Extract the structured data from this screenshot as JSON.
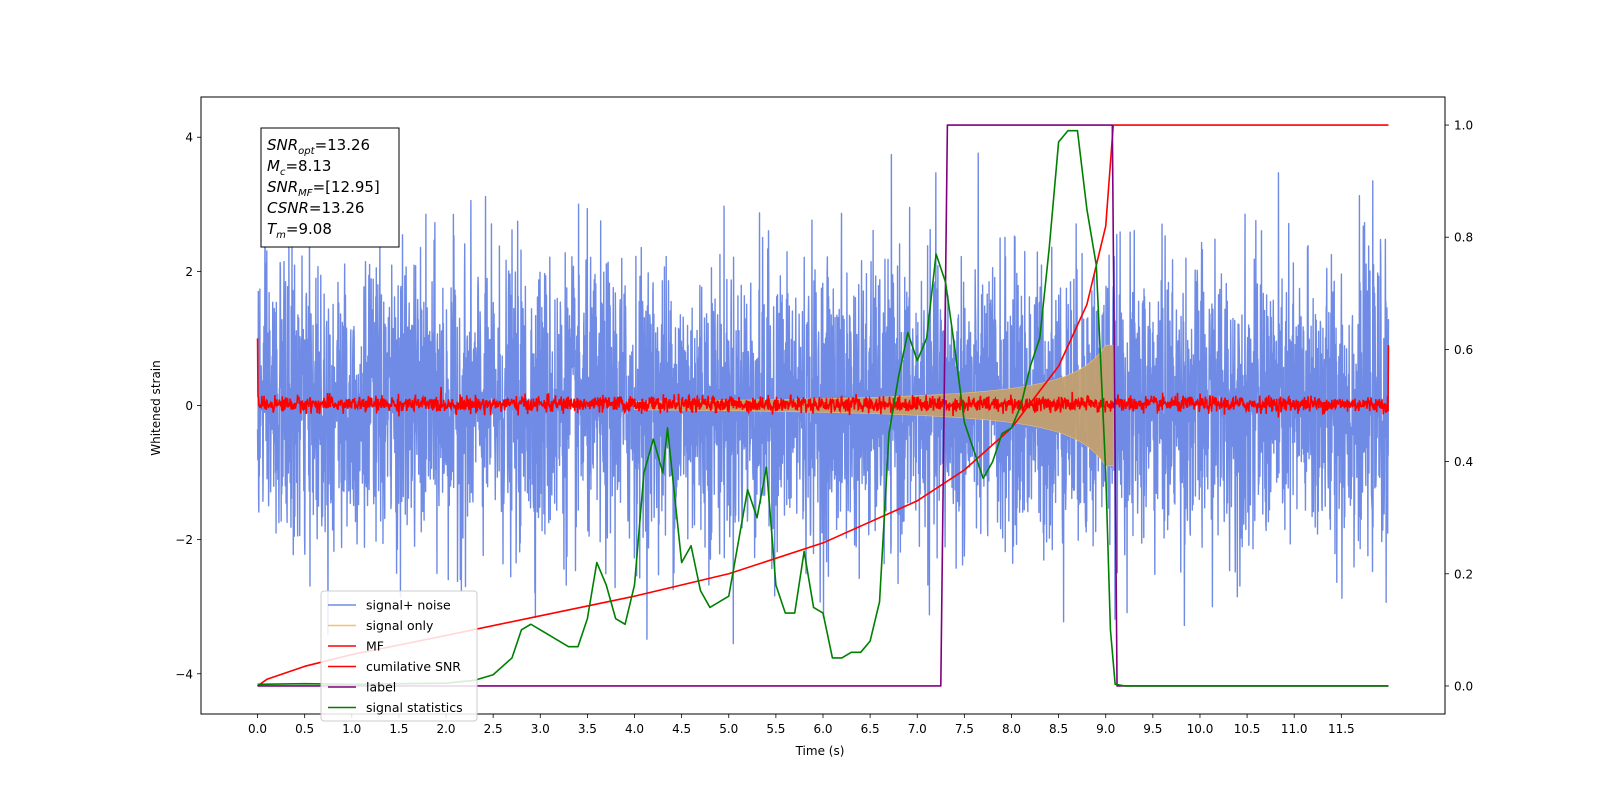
{
  "chart_data": {
    "type": "line",
    "title": "",
    "xlabel": "Time (s)",
    "ylabel": "Whitened strain",
    "xlim": [
      -0.6,
      12.6
    ],
    "ylim": [
      -4.6,
      4.6
    ],
    "y2lim": [
      -0.05,
      1.05
    ],
    "xticks": [
      "0.0",
      "0.5",
      "1.0",
      "1.5",
      "2.0",
      "2.5",
      "3.0",
      "3.5",
      "4.0",
      "4.5",
      "5.0",
      "5.5",
      "6.0",
      "6.5",
      "7.0",
      "7.5",
      "8.0",
      "8.5",
      "9.0",
      "9.5",
      "10.0",
      "10.5",
      "11.0",
      "11.5"
    ],
    "yticks": [
      "−4",
      "−2",
      "0",
      "2",
      "4"
    ],
    "y2ticks": [
      "0.0",
      "0.2",
      "0.4",
      "0.6",
      "0.8",
      "1.0"
    ],
    "legend_placement": "lower-left",
    "colors": {
      "signal_noise": "#6f8be5",
      "signal_only": "#f5c26b",
      "signal_fill": "#c2a070",
      "mf": "#ff0000",
      "cumulative_snr": "#ff0000",
      "label": "#800080",
      "signal_statistics": "#008000"
    },
    "series": [
      {
        "name": "signal+ noise",
        "axis": "left",
        "t_range": [
          0.0,
          12.0
        ],
        "amplitude_std": 1.0
      },
      {
        "name": "signal only",
        "axis": "left",
        "t_range": [
          0.0,
          9.08
        ],
        "envelope_end": 0.9
      },
      {
        "name": "MF",
        "axis": "left",
        "t_range": [
          0.0,
          12.0
        ],
        "noise_std": 0.06,
        "start_value": 1.0,
        "end_value": 0.9
      },
      {
        "name": "cumilative SNR",
        "axis": "right",
        "x": [
          0.0,
          0.1,
          0.5,
          1.0,
          2.0,
          3.0,
          4.0,
          5.0,
          6.0,
          7.0,
          7.5,
          8.0,
          8.5,
          8.8,
          9.0,
          9.08,
          9.1,
          12.0
        ],
        "y": [
          0.0,
          0.012,
          0.035,
          0.056,
          0.09,
          0.125,
          0.16,
          0.2,
          0.255,
          0.33,
          0.385,
          0.46,
          0.57,
          0.68,
          0.82,
          1.0,
          1.0,
          1.0
        ]
      },
      {
        "name": "label",
        "axis": "right",
        "x": [
          0.0,
          7.25,
          7.32,
          9.07,
          9.12,
          12.0
        ],
        "y": [
          0.0,
          0.0,
          1.0,
          1.0,
          0.0,
          0.0
        ]
      },
      {
        "name": "signal statistics",
        "axis": "right",
        "x": [
          0.0,
          0.5,
          1.0,
          1.5,
          2.0,
          2.3,
          2.5,
          2.7,
          2.8,
          2.9,
          3.0,
          3.1,
          3.2,
          3.3,
          3.4,
          3.5,
          3.6,
          3.7,
          3.8,
          3.9,
          4.0,
          4.1,
          4.2,
          4.3,
          4.35,
          4.4,
          4.5,
          4.6,
          4.7,
          4.8,
          4.9,
          5.0,
          5.2,
          5.3,
          5.4,
          5.5,
          5.6,
          5.7,
          5.8,
          5.9,
          6.0,
          6.1,
          6.2,
          6.3,
          6.4,
          6.5,
          6.6,
          6.7,
          6.8,
          6.9,
          7.0,
          7.1,
          7.2,
          7.3,
          7.4,
          7.5,
          7.6,
          7.7,
          7.8,
          7.9,
          8.0,
          8.1,
          8.2,
          8.3,
          8.4,
          8.5,
          8.6,
          8.7,
          8.8,
          8.9,
          9.0,
          9.05,
          9.1,
          9.2,
          10.0,
          11.0,
          12.0
        ],
        "y": [
          0.003,
          0.004,
          0.003,
          0.004,
          0.005,
          0.01,
          0.02,
          0.05,
          0.1,
          0.11,
          0.1,
          0.09,
          0.08,
          0.07,
          0.07,
          0.12,
          0.22,
          0.18,
          0.12,
          0.11,
          0.18,
          0.38,
          0.44,
          0.38,
          0.46,
          0.38,
          0.22,
          0.25,
          0.17,
          0.14,
          0.15,
          0.16,
          0.35,
          0.3,
          0.39,
          0.18,
          0.13,
          0.13,
          0.24,
          0.14,
          0.13,
          0.05,
          0.05,
          0.06,
          0.06,
          0.08,
          0.15,
          0.45,
          0.55,
          0.63,
          0.58,
          0.62,
          0.77,
          0.72,
          0.6,
          0.47,
          0.42,
          0.37,
          0.4,
          0.45,
          0.46,
          0.5,
          0.57,
          0.62,
          0.78,
          0.97,
          0.99,
          0.99,
          0.85,
          0.75,
          0.38,
          0.1,
          0.003,
          0.0,
          0.0,
          0.0,
          0.0
        ]
      }
    ],
    "annotation_box": {
      "lines": [
        {
          "base": "SNR",
          "sub": "opt",
          "value": "=13.26"
        },
        {
          "base": "M",
          "sub": "c",
          "value": "=8.13"
        },
        {
          "base": "SNR",
          "sub": "MF",
          "value": "=[12.95]"
        },
        {
          "base": "CSNR",
          "sub": "",
          "value": "=13.26"
        },
        {
          "base": "T",
          "sub": "m",
          "value": "=9.08"
        }
      ]
    }
  }
}
